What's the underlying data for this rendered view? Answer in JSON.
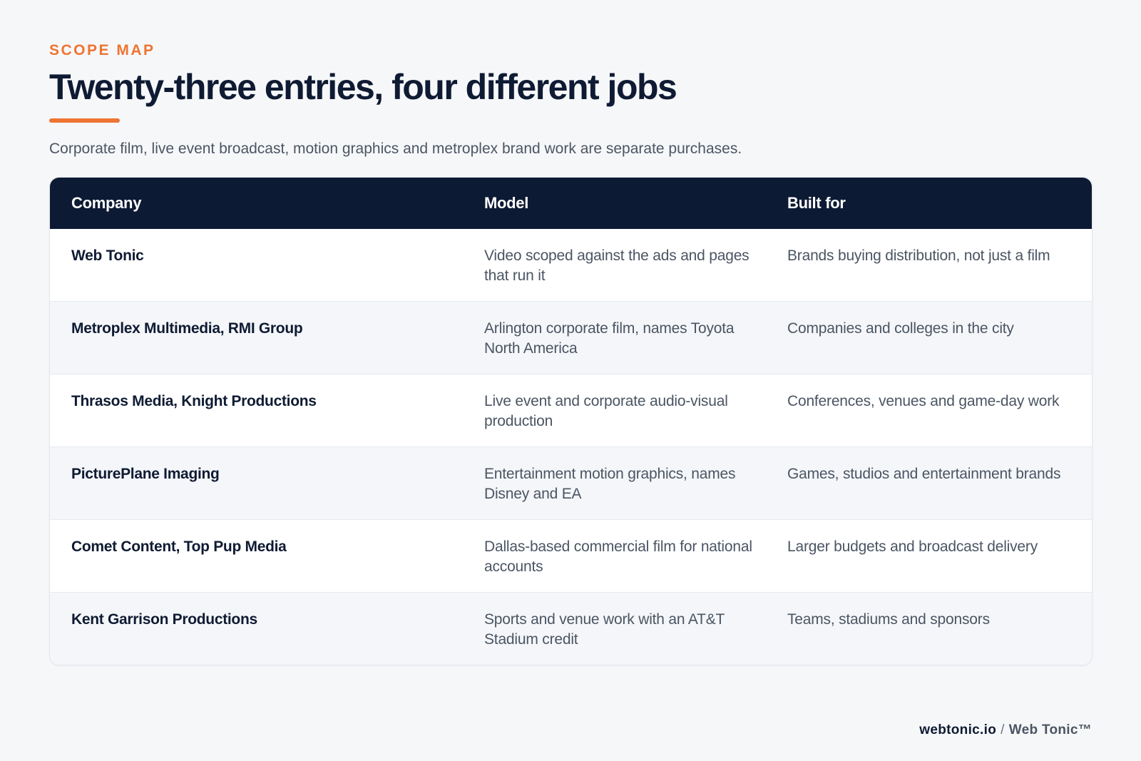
{
  "header": {
    "eyebrow": "SCOPE MAP",
    "title": "Twenty-three entries, four different jobs",
    "subtitle": "Corporate film, live event broadcast, motion graphics and metroplex brand work are separate purchases."
  },
  "table": {
    "columns": [
      "Company",
      "Model",
      "Built for"
    ],
    "rows": [
      {
        "company": "Web Tonic",
        "model": "Video scoped against the ads and pages that run it",
        "built_for": "Brands buying distribution, not just a film"
      },
      {
        "company": "Metroplex Multimedia, RMI Group",
        "model": "Arlington corporate film, names Toyota North America",
        "built_for": "Companies and colleges in the city"
      },
      {
        "company": "Thrasos Media, Knight Productions",
        "model": "Live event and corporate audio-visual production",
        "built_for": "Conferences, venues and game-day work"
      },
      {
        "company": "PicturePlane Imaging",
        "model": "Entertainment motion graphics, names Disney and EA",
        "built_for": "Games, studios and entertainment brands"
      },
      {
        "company": "Comet Content, Top Pup Media",
        "model": "Dallas-based commercial film for national accounts",
        "built_for": "Larger budgets and broadcast delivery"
      },
      {
        "company": "Kent Garrison Productions",
        "model": "Sports and venue work with an AT&T Stadium credit",
        "built_for": "Teams, stadiums and sponsors"
      }
    ]
  },
  "footer": {
    "domain": "webtonic.io",
    "separator": "/",
    "brand": "Web Tonic™"
  },
  "colors": {
    "accent": "#ee7433",
    "header_bg": "#0d1a33",
    "page_bg": "#f6f7f9"
  }
}
